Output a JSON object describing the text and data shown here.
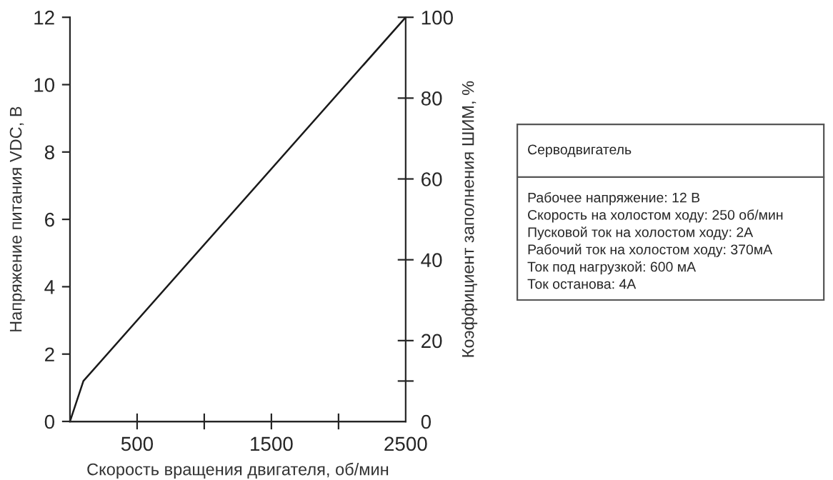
{
  "chart_data": {
    "type": "line",
    "xlabel": "Скорость вращения двигателя, об/мин",
    "ylabel": "Напряжение питания VDC, В",
    "y2label": "Коэффициент заполнения ШИМ, %",
    "x": [
      0,
      100,
      2500
    ],
    "series": [
      {
        "color": "#1a1a1a",
        "values": [
          0,
          1.2,
          12
        ]
      }
    ],
    "xlim": [
      0,
      2500
    ],
    "xticks": [
      500,
      {
        "value": 1000,
        "label": null
      },
      1500,
      {
        "value": 2000,
        "label": null
      },
      2500
    ],
    "ylim": [
      0,
      12
    ],
    "yticks": [
      0,
      2,
      4,
      6,
      8,
      10,
      12
    ],
    "y2lim": [
      0,
      100
    ],
    "y2ticks": [
      0,
      {
        "value": 10,
        "label": null
      },
      20,
      40,
      60,
      80,
      100
    ],
    "annotations": [
      "Серводвигатель",
      "Рабочее напряжение: 12 В",
      "Скорость на холостом ходу: 250 об/мин",
      "Пусковой ток на холостом ходу: 2А",
      "Рабочий ток на холостом ходу: 370мА",
      "Ток под нагрузкой: 600 мА",
      "Ток останова: 4А"
    ],
    "grid": false
  }
}
